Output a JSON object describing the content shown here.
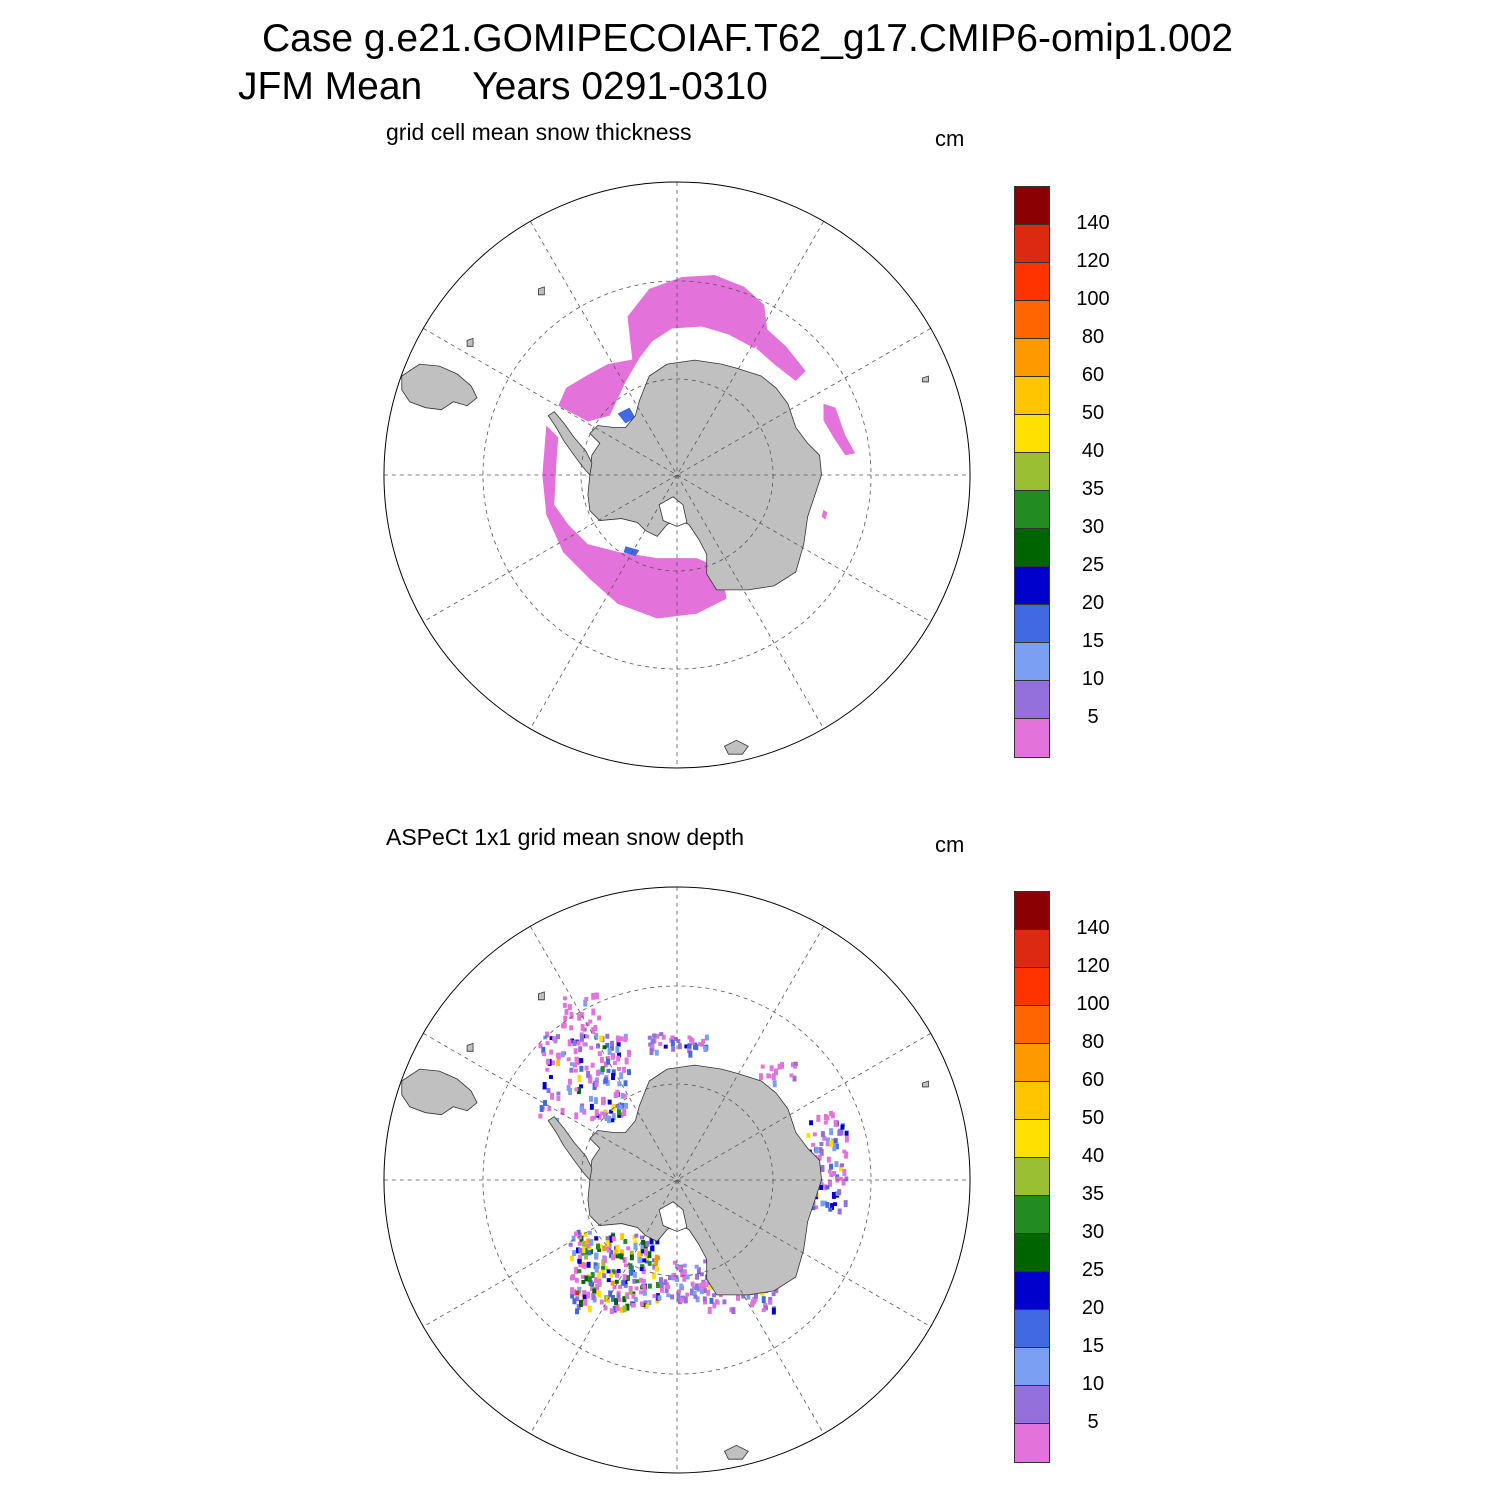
{
  "header": {
    "case_line": "Case g.e21.GOMIPECOIAF.T62_g17.CMIP6-omip1.002",
    "period": "JFM Mean",
    "years": "Years 0291-0310"
  },
  "panels": [
    {
      "subtitle": "grid cell mean snow thickness",
      "unit": "cm"
    },
    {
      "subtitle": "ASPeCt 1x1 grid mean snow depth",
      "unit": "cm"
    }
  ],
  "colorbar": {
    "labels": [
      "5",
      "10",
      "15",
      "20",
      "25",
      "30",
      "35",
      "40",
      "50",
      "60",
      "80",
      "100",
      "120",
      "140"
    ],
    "colors": [
      "#e373db",
      "#9370db",
      "#7b9ff2",
      "#4169e1",
      "#0000cd",
      "#006400",
      "#228b22",
      "#9abf32",
      "#ffe000",
      "#ffc500",
      "#ff9900",
      "#ff6600",
      "#ff3300",
      "#dc2a12",
      "#8b0000"
    ]
  },
  "map": {
    "projection": "south polar stereographic",
    "land_color": "#c0c0c0",
    "ocean_color": "#ffffff"
  }
}
